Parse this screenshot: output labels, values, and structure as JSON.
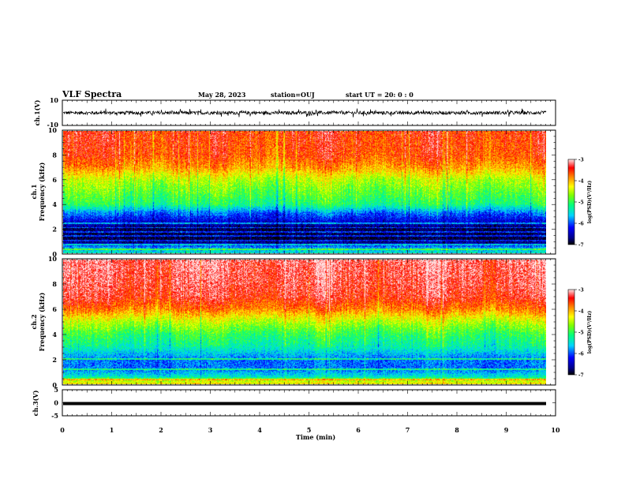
{
  "header": {
    "title": "VLF Spectra",
    "date": "May 28, 2023",
    "station": "station=OUJ",
    "start": "start UT =  20: 0 : 0"
  },
  "chart_data": [
    {
      "type": "line",
      "panel": "ch1-waveform",
      "ylabel": "ch.1(V)",
      "ylim": [
        -10,
        10
      ],
      "yticks": [
        -10,
        10
      ],
      "xlim": [
        0,
        10
      ],
      "baseline": 0,
      "noise_amplitude": 3,
      "color": "#000000"
    },
    {
      "type": "heatmap",
      "panel": "ch1-spectrogram",
      "ylabel": "ch.1 Frequency (kHz)",
      "ylim": [
        0,
        10
      ],
      "yticks": [
        0,
        2,
        4,
        6,
        8,
        10
      ],
      "xlim": [
        0,
        9.83
      ],
      "colorbar": {
        "label": "log(PSD)(V²/Hz)",
        "range": [
          -7,
          -3
        ],
        "ticks": [
          -3,
          -4,
          -5,
          -6,
          -7
        ]
      },
      "profile_freq_khz": [
        0,
        0.5,
        1,
        2,
        2.7,
        3.3,
        4,
        5,
        6,
        7,
        8,
        10
      ],
      "profile_level": [
        -5.4,
        -5.8,
        -6.9,
        -6.8,
        -6.3,
        -5.9,
        -5.1,
        -4.8,
        -4.5,
        -3.9,
        -3.6,
        -3.5
      ],
      "hum_lines_khz": [
        0.35,
        0.7,
        1.05,
        1.4,
        1.75,
        2.1,
        2.45
      ]
    },
    {
      "type": "heatmap",
      "panel": "ch2-spectrogram",
      "ylabel": "ch.2 Frequency (kHz)",
      "ylim": [
        0,
        10
      ],
      "yticks": [
        0,
        2,
        4,
        6,
        8,
        10
      ],
      "xlim": [
        0,
        9.83
      ],
      "colorbar": {
        "label": "log(PSD)(V²/Hz)",
        "range": [
          -7,
          -3
        ],
        "ticks": [
          -3,
          -4,
          -5,
          -6,
          -7
        ]
      },
      "profile_freq_khz": [
        0,
        0.3,
        0.6,
        1.2,
        2,
        3,
        4,
        5,
        6,
        7,
        8,
        10
      ],
      "profile_level": [
        -4.2,
        -4.5,
        -5.4,
        -5.9,
        -5.9,
        -5.3,
        -5.0,
        -4.5,
        -3.8,
        -3.4,
        -3.3,
        -3.2
      ],
      "hum_lines_khz": [
        0.4,
        1.2,
        2.0
      ]
    },
    {
      "type": "line",
      "panel": "ch3-waveform",
      "ylabel": "ch.3(V)",
      "ylim": [
        -5,
        5
      ],
      "yticks": [
        -5,
        0,
        5
      ],
      "xlim": [
        0,
        10
      ],
      "baseline": 0,
      "noise_amplitude": 0,
      "color": "#000000"
    }
  ],
  "xaxis": {
    "label": "Time (min)",
    "range": [
      0,
      10
    ],
    "ticks": [
      "0",
      "1",
      "2",
      "3",
      "4",
      "5",
      "6",
      "7",
      "8",
      "9",
      "10"
    ]
  }
}
